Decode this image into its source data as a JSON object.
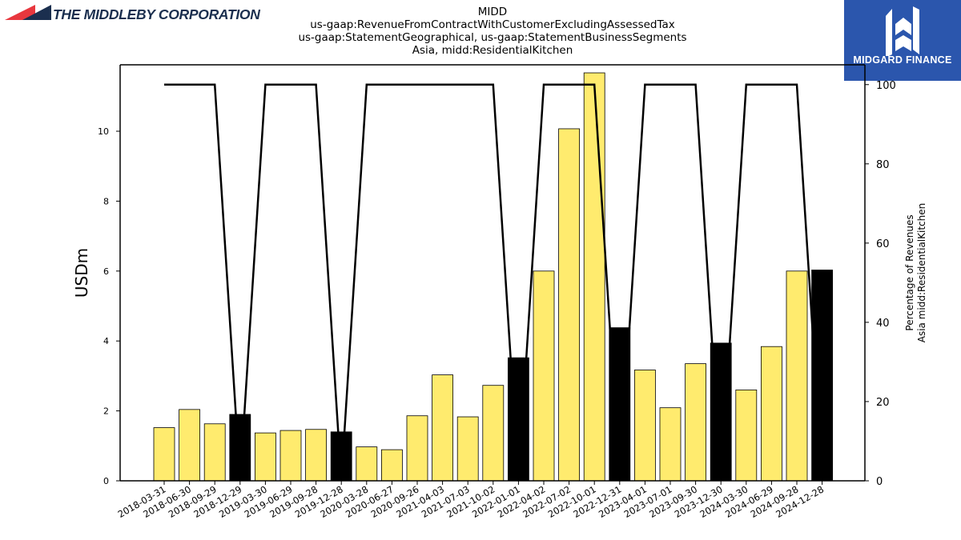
{
  "header": {
    "company_logo_text": "THE MIDDLEBY CORPORATION",
    "title_lines": [
      "MIDD",
      "us-gaap:RevenueFromContractWithCustomerExcludingAssessedTax",
      "us-gaap:StatementGeographical, us-gaap:StatementBusinessSegments",
      "Asia, midd:ResidentialKitchen"
    ],
    "brand_name": "MIDGARD FINANCE"
  },
  "colors": {
    "bar_default": "#ffeb6e",
    "bar_highlight": "#000000",
    "line": "#000000",
    "logo_red": "#e8373e",
    "logo_navy": "#1b2f4f",
    "brand_blue": "#2b56ad"
  },
  "chart_data": {
    "type": "bar",
    "categories": [
      "2018-03-31",
      "2018-06-30",
      "2018-09-29",
      "2018-12-29",
      "2019-03-30",
      "2019-06-29",
      "2019-09-28",
      "2019-12-28",
      "2020-03-28",
      "2020-06-27",
      "2020-09-26",
      "2021-04-03",
      "2021-07-03",
      "2021-10-02",
      "2022-01-01",
      "2022-04-02",
      "2022-07-02",
      "2022-10-01",
      "2022-12-31",
      "2023-04-01",
      "2023-07-01",
      "2023-09-30",
      "2023-12-30",
      "2024-03-30",
      "2024-06-29",
      "2024-09-28",
      "2024-12-28"
    ],
    "series": [
      {
        "values": [
          1.52,
          2.04,
          1.63,
          1.9,
          1.37,
          1.44,
          1.47,
          1.4,
          0.97,
          0.89,
          1.86,
          3.03,
          1.83,
          2.73,
          3.52,
          6.0,
          10.07,
          11.67,
          4.38,
          3.17,
          2.09,
          3.35,
          3.94,
          2.6,
          3.84,
          6.0,
          6.03
        ],
        "axis": "left",
        "highlighted_indices": [
          3,
          7,
          14,
          18,
          22,
          26
        ]
      },
      {
        "values": [
          100,
          100,
          100,
          0,
          100,
          100,
          100,
          0,
          100,
          100,
          100,
          100,
          100,
          100,
          0,
          100,
          100,
          100,
          0,
          100,
          100,
          100,
          0,
          100,
          100,
          100,
          0
        ],
        "axis": "right",
        "type": "line"
      }
    ],
    "ylabel": "USDm",
    "ylabel_right_lines": [
      "Percentage of Revenues",
      "Asia midd:ResidentialKitchen"
    ],
    "ylim": [
      0,
      11.9
    ],
    "yticks": [
      0,
      2,
      4,
      6,
      8,
      10
    ],
    "ylim_right": [
      0,
      105
    ],
    "yticks_right": [
      0,
      20,
      40,
      60,
      80,
      100
    ],
    "grid": false,
    "legend": "none"
  }
}
